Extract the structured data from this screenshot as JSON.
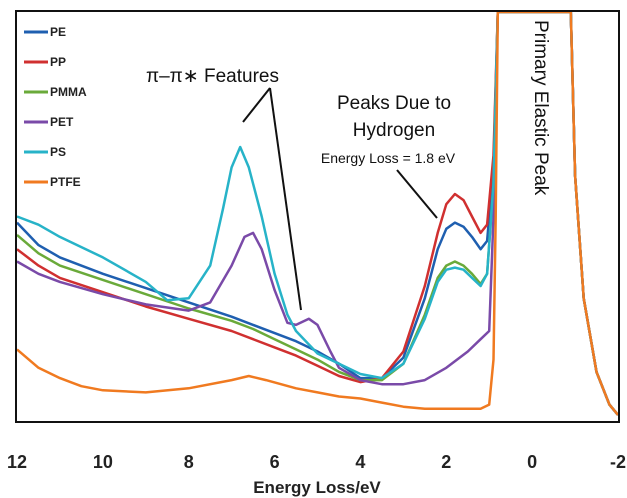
{
  "chart_data": {
    "type": "line",
    "title": "",
    "xlabel": "Energy Loss/eV",
    "ylabel": "",
    "xlim": [
      12,
      -2
    ],
    "ylim": [
      0,
      1
    ],
    "x_ticks": [
      "12",
      "10",
      "8",
      "6",
      "4",
      "2",
      "0",
      "-2"
    ],
    "legend_position": "top-left",
    "grid": false,
    "annotations": {
      "pi_features": "π–π∗ Features",
      "peaks_hydrogen_line1": "Peaks Due to",
      "peaks_hydrogen_line2": "Hydrogen",
      "energy_loss": "Energy Loss = 1.8 eV",
      "primary_peak": "Primary Elastic Peak"
    },
    "series": [
      {
        "name": "PE",
        "color": "#1f5fb0",
        "points": [
          [
            12,
            0.485
          ],
          [
            11.5,
            0.43
          ],
          [
            11,
            0.4
          ],
          [
            10,
            0.36
          ],
          [
            9,
            0.325
          ],
          [
            8,
            0.29
          ],
          [
            7,
            0.255
          ],
          [
            6.5,
            0.235
          ],
          [
            6,
            0.215
          ],
          [
            5.5,
            0.195
          ],
          [
            5,
            0.17
          ],
          [
            4.5,
            0.14
          ],
          [
            4,
            0.105
          ],
          [
            3.5,
            0.105
          ],
          [
            3,
            0.155
          ],
          [
            2.5,
            0.3
          ],
          [
            2.2,
            0.42
          ],
          [
            2,
            0.47
          ],
          [
            1.8,
            0.485
          ],
          [
            1.6,
            0.475
          ],
          [
            1.4,
            0.45
          ],
          [
            1.2,
            0.42
          ],
          [
            1.05,
            0.44
          ],
          [
            0.9,
            0.62
          ],
          [
            0.8,
            1.0
          ],
          [
            -0.9,
            1.0
          ],
          [
            -1.0,
            0.6
          ],
          [
            -1.2,
            0.3
          ],
          [
            -1.5,
            0.12
          ],
          [
            -1.8,
            0.04
          ],
          [
            -2,
            0.015
          ]
        ]
      },
      {
        "name": "PP",
        "color": "#d03030",
        "points": [
          [
            12,
            0.42
          ],
          [
            11.5,
            0.38
          ],
          [
            11,
            0.35
          ],
          [
            10,
            0.315
          ],
          [
            9,
            0.28
          ],
          [
            8,
            0.25
          ],
          [
            7,
            0.22
          ],
          [
            6.5,
            0.2
          ],
          [
            6,
            0.18
          ],
          [
            5.5,
            0.16
          ],
          [
            5,
            0.135
          ],
          [
            4.5,
            0.11
          ],
          [
            4,
            0.095
          ],
          [
            3.5,
            0.105
          ],
          [
            3,
            0.17
          ],
          [
            2.5,
            0.33
          ],
          [
            2.2,
            0.46
          ],
          [
            2,
            0.53
          ],
          [
            1.8,
            0.555
          ],
          [
            1.6,
            0.54
          ],
          [
            1.4,
            0.5
          ],
          [
            1.2,
            0.46
          ],
          [
            1.05,
            0.48
          ],
          [
            0.9,
            0.65
          ],
          [
            0.8,
            1.0
          ],
          [
            -0.9,
            1.0
          ],
          [
            -1.0,
            0.6
          ],
          [
            -1.2,
            0.3
          ],
          [
            -1.5,
            0.12
          ],
          [
            -1.8,
            0.04
          ],
          [
            -2,
            0.015
          ]
        ]
      },
      {
        "name": "PMMA",
        "color": "#6aaa3a",
        "points": [
          [
            12,
            0.455
          ],
          [
            11.5,
            0.41
          ],
          [
            11,
            0.38
          ],
          [
            10,
            0.345
          ],
          [
            9,
            0.31
          ],
          [
            8,
            0.275
          ],
          [
            7,
            0.245
          ],
          [
            6.5,
            0.225
          ],
          [
            6,
            0.2
          ],
          [
            5.5,
            0.175
          ],
          [
            5,
            0.15
          ],
          [
            4.5,
            0.12
          ],
          [
            4,
            0.1
          ],
          [
            3.5,
            0.1
          ],
          [
            3,
            0.14
          ],
          [
            2.5,
            0.26
          ],
          [
            2.2,
            0.35
          ],
          [
            2,
            0.38
          ],
          [
            1.8,
            0.39
          ],
          [
            1.6,
            0.38
          ],
          [
            1.4,
            0.36
          ],
          [
            1.2,
            0.335
          ],
          [
            1.05,
            0.36
          ],
          [
            0.9,
            0.58
          ],
          [
            0.8,
            1.0
          ],
          [
            -0.9,
            1.0
          ],
          [
            -1.0,
            0.6
          ],
          [
            -1.2,
            0.3
          ],
          [
            -1.5,
            0.12
          ],
          [
            -1.8,
            0.04
          ],
          [
            -2,
            0.015
          ]
        ]
      },
      {
        "name": "PET",
        "color": "#7a4aa8",
        "points": [
          [
            12,
            0.39
          ],
          [
            11.5,
            0.36
          ],
          [
            11,
            0.34
          ],
          [
            10,
            0.31
          ],
          [
            9,
            0.285
          ],
          [
            8,
            0.27
          ],
          [
            7.5,
            0.29
          ],
          [
            7,
            0.38
          ],
          [
            6.7,
            0.45
          ],
          [
            6.5,
            0.46
          ],
          [
            6.3,
            0.42
          ],
          [
            6,
            0.32
          ],
          [
            5.7,
            0.24
          ],
          [
            5.5,
            0.235
          ],
          [
            5.2,
            0.25
          ],
          [
            5,
            0.235
          ],
          [
            4.7,
            0.17
          ],
          [
            4.5,
            0.13
          ],
          [
            4,
            0.1
          ],
          [
            3.5,
            0.09
          ],
          [
            3,
            0.09
          ],
          [
            2.5,
            0.1
          ],
          [
            2,
            0.13
          ],
          [
            1.5,
            0.17
          ],
          [
            1.2,
            0.2
          ],
          [
            1,
            0.22
          ],
          [
            0.9,
            0.5
          ],
          [
            0.8,
            1.0
          ],
          [
            -0.9,
            1.0
          ],
          [
            -1.0,
            0.6
          ],
          [
            -1.2,
            0.3
          ],
          [
            -1.5,
            0.12
          ],
          [
            -1.8,
            0.04
          ],
          [
            -2,
            0.015
          ]
        ]
      },
      {
        "name": "PS",
        "color": "#27b3c8",
        "points": [
          [
            12,
            0.5
          ],
          [
            11.5,
            0.48
          ],
          [
            11,
            0.45
          ],
          [
            10,
            0.4
          ],
          [
            9,
            0.34
          ],
          [
            8.5,
            0.295
          ],
          [
            8,
            0.3
          ],
          [
            7.5,
            0.38
          ],
          [
            7.2,
            0.52
          ],
          [
            7,
            0.62
          ],
          [
            6.8,
            0.67
          ],
          [
            6.6,
            0.62
          ],
          [
            6.3,
            0.5
          ],
          [
            6,
            0.36
          ],
          [
            5.7,
            0.26
          ],
          [
            5.5,
            0.22
          ],
          [
            5,
            0.165
          ],
          [
            4.5,
            0.14
          ],
          [
            4,
            0.115
          ],
          [
            3.5,
            0.105
          ],
          [
            3,
            0.14
          ],
          [
            2.5,
            0.25
          ],
          [
            2.2,
            0.34
          ],
          [
            2,
            0.37
          ],
          [
            1.8,
            0.375
          ],
          [
            1.6,
            0.37
          ],
          [
            1.4,
            0.35
          ],
          [
            1.2,
            0.33
          ],
          [
            1.05,
            0.36
          ],
          [
            0.9,
            0.58
          ],
          [
            0.8,
            1.0
          ],
          [
            -0.9,
            1.0
          ],
          [
            -1.0,
            0.6
          ],
          [
            -1.2,
            0.3
          ],
          [
            -1.5,
            0.12
          ],
          [
            -1.8,
            0.04
          ],
          [
            -2,
            0.015
          ]
        ]
      },
      {
        "name": "PTFE",
        "color": "#f07a20",
        "points": [
          [
            12,
            0.175
          ],
          [
            11.5,
            0.13
          ],
          [
            11,
            0.105
          ],
          [
            10.5,
            0.085
          ],
          [
            10,
            0.075
          ],
          [
            9,
            0.07
          ],
          [
            8,
            0.08
          ],
          [
            7,
            0.1
          ],
          [
            6.6,
            0.11
          ],
          [
            6.2,
            0.1
          ],
          [
            5.5,
            0.08
          ],
          [
            5,
            0.07
          ],
          [
            4.5,
            0.06
          ],
          [
            4,
            0.055
          ],
          [
            3.5,
            0.045
          ],
          [
            3,
            0.035
          ],
          [
            2.5,
            0.03
          ],
          [
            2,
            0.03
          ],
          [
            1.5,
            0.03
          ],
          [
            1.2,
            0.03
          ],
          [
            1,
            0.04
          ],
          [
            0.9,
            0.15
          ],
          [
            0.85,
            0.5
          ],
          [
            0.8,
            1.0
          ],
          [
            -0.9,
            1.0
          ],
          [
            -1.0,
            0.6
          ],
          [
            -1.2,
            0.3
          ],
          [
            -1.5,
            0.12
          ],
          [
            -1.8,
            0.04
          ],
          [
            -2,
            0.015
          ]
        ]
      }
    ]
  }
}
